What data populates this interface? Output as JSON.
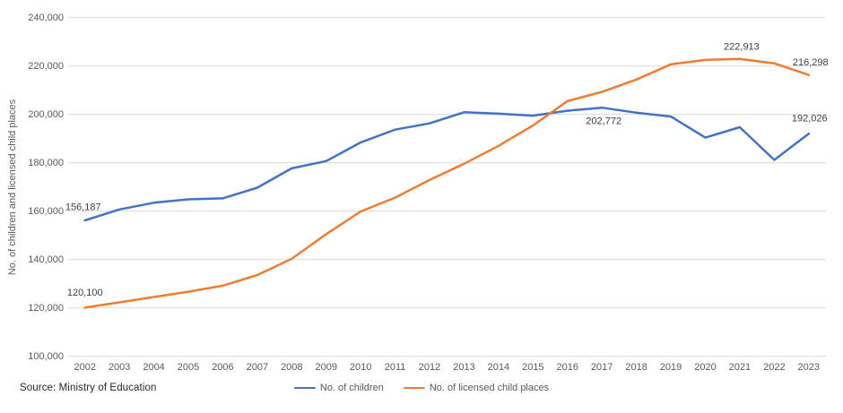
{
  "footer": {
    "source": "Source: Ministry of Education"
  },
  "colors": {
    "background": "#FFFFFF",
    "grid": "#D9D9D9",
    "tick_text": "#595959",
    "axis_title_text": "#595959",
    "data_label_text": "#404040",
    "source_text": "#262626",
    "series_children": "#4472C4",
    "series_places": "#ED7D31"
  },
  "chart_data": {
    "type": "line",
    "title": "",
    "xlabel": "",
    "ylabel": "No. of children and licensed child places",
    "grid": true,
    "legend_position": "bottom",
    "ylim": [
      100000,
      240000
    ],
    "categories": [
      2002,
      2003,
      2004,
      2005,
      2006,
      2007,
      2008,
      2009,
      2010,
      2011,
      2012,
      2013,
      2014,
      2015,
      2016,
      2017,
      2018,
      2019,
      2020,
      2021,
      2022,
      2023
    ],
    "y_axis": {
      "min": 100000,
      "max": 240000,
      "step": 20000,
      "tick_labels": [
        "100,000",
        "120,000",
        "140,000",
        "160,000",
        "180,000",
        "200,000",
        "220,000",
        "240,000"
      ]
    },
    "series": [
      {
        "name": "No. of children",
        "color": "#4472C4",
        "values": [
          156187,
          160700,
          163500,
          164900,
          165300,
          169700,
          177700,
          180700,
          188400,
          193700,
          196300,
          200900,
          200300,
          199500,
          201500,
          202772,
          200700,
          199100,
          190400,
          194700,
          181200,
          192026
        ],
        "point_labels": [
          {
            "index": 0,
            "text": "156,187",
            "dx": -2,
            "dy": -15
          },
          {
            "index": 15,
            "text": "202,772",
            "dx": 2,
            "dy": 15
          },
          {
            "index": 21,
            "text": "192,026",
            "dx": 1,
            "dy": -17
          }
        ]
      },
      {
        "name": "No. of licensed child places",
        "color": "#ED7D31",
        "values": [
          120100,
          122300,
          124500,
          126700,
          129200,
          133600,
          140300,
          150500,
          159900,
          165600,
          172900,
          179600,
          187000,
          195400,
          205500,
          209300,
          214400,
          220700,
          222500,
          222913,
          221100,
          216298
        ],
        "point_labels": [
          {
            "index": 0,
            "text": "120,100",
            "dx": 0,
            "dy": -17
          },
          {
            "index": 19,
            "text": "222,913",
            "dx": 2,
            "dy": -14
          },
          {
            "index": 21,
            "text": "216,298",
            "dx": 2,
            "dy": -14
          }
        ]
      }
    ]
  }
}
